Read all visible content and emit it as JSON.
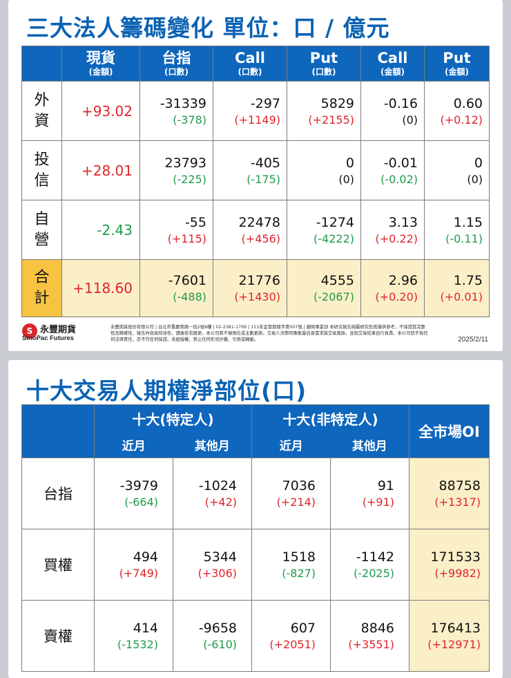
{
  "institutional": {
    "title": "三大法人籌碼變化 單位：口 / 億元",
    "headers": [
      {
        "main": "現貨",
        "sub": "(金額)"
      },
      {
        "main": "台指",
        "sub": "(口數)"
      },
      {
        "main": "Call",
        "sub": "(口數)"
      },
      {
        "main": "Put",
        "sub": "(口數)"
      },
      {
        "main": "Call",
        "sub": "(金額)"
      },
      {
        "main": "Put",
        "sub": "(金額)"
      }
    ],
    "rows": [
      {
        "label1": "外",
        "label2": "資",
        "spot": "+93.02",
        "cells": [
          {
            "v": "-31339",
            "c": "(-378)"
          },
          {
            "v": "-297",
            "c": "(+1149)"
          },
          {
            "v": "5829",
            "c": "(+2155)"
          },
          {
            "v": "-0.16",
            "c": "(0)"
          },
          {
            "v": "0.60",
            "c": "(+0.12)"
          }
        ]
      },
      {
        "label1": "投",
        "label2": "信",
        "spot": "+28.01",
        "cells": [
          {
            "v": "23793",
            "c": "(-225)"
          },
          {
            "v": "-405",
            "c": "(-175)"
          },
          {
            "v": "0",
            "c": "(0)"
          },
          {
            "v": "-0.01",
            "c": "(-0.02)"
          },
          {
            "v": "0",
            "c": "(0)"
          }
        ]
      },
      {
        "label1": "自",
        "label2": "營",
        "spot": "-2.43",
        "cells": [
          {
            "v": "-55",
            "c": "(+115)"
          },
          {
            "v": "22478",
            "c": "(+456)"
          },
          {
            "v": "-1274",
            "c": "(-4222)"
          },
          {
            "v": "3.13",
            "c": "(+0.22)"
          },
          {
            "v": "1.15",
            "c": "(-0.11)"
          }
        ]
      },
      {
        "label1": "合",
        "label2": "計",
        "spot": "+118.60",
        "cells": [
          {
            "v": "-7601",
            "c": "(-488)"
          },
          {
            "v": "21776",
            "c": "(+1430)"
          },
          {
            "v": "4555",
            "c": "(-2067)"
          },
          {
            "v": "2.96",
            "c": "(+0.20)"
          },
          {
            "v": "1.75",
            "c": "(+0.01)"
          }
        ]
      }
    ]
  },
  "footer": {
    "brand_cn": "永豐期貨",
    "brand_en": "SinoPac Futures",
    "disclaimer": "永豐期貨股份有限公司 | 台北市重慶南路一段2號8樓 | 02-2381-1799 | 111年金管期總字第007號 | 顧問事業部 本研究報告純屬研究性質僅供參考，不保證其完整性及精確性，報告內容具時效性，讀後若有變更，本公司將不做預告或主動更新。交易人決策時應衡量自身需求與交易風險，並就交易結果自行負責，本公司恕不負任何法律責任，亦不作任何保證。未經授權，禁止任何形式抄襲、引用或轉載。",
    "date": "2025/2/11"
  },
  "top10": {
    "title": "十大交易人期權淨部位(口)",
    "group1": "十大(特定人)",
    "group2": "十大(非特定人)",
    "sub_near": "近月",
    "sub_other": "其他月",
    "oi_header": "全市場OI",
    "rows": [
      {
        "label": "台指",
        "cells": [
          {
            "v": "-3979",
            "c": "(-664)"
          },
          {
            "v": "-1024",
            "c": "(+42)"
          },
          {
            "v": "7036",
            "c": "(+214)"
          },
          {
            "v": "91",
            "c": "(+91)"
          },
          {
            "v": "88758",
            "c": "(+1317)"
          }
        ]
      },
      {
        "label": "買權",
        "cells": [
          {
            "v": "494",
            "c": "(+749)"
          },
          {
            "v": "5344",
            "c": "(+306)"
          },
          {
            "v": "1518",
            "c": "(-827)"
          },
          {
            "v": "-1142",
            "c": "(-2025)"
          },
          {
            "v": "171533",
            "c": "(+9982)"
          }
        ]
      },
      {
        "label": "賣權",
        "cells": [
          {
            "v": "414",
            "c": "(-1532)"
          },
          {
            "v": "-9658",
            "c": "(-610)"
          },
          {
            "v": "607",
            "c": "(+2051)"
          },
          {
            "v": "8846",
            "c": "(+3551)"
          },
          {
            "v": "176413",
            "c": "(+12971)"
          }
        ]
      }
    ]
  },
  "colors": {
    "header_blue": "#0e66bd",
    "title_blue": "#0a62b3",
    "total_bg": "#fbefc8",
    "total_label": "#f6c342",
    "up_red": "#e0242a",
    "down_green": "#1f9a4b"
  }
}
